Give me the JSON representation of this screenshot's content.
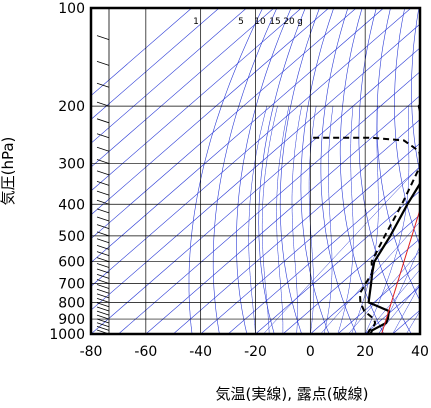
{
  "chart_data": {
    "type": "line",
    "subtype": "skew-t log-p sounding",
    "xlabel": "気温(実線), 露点(破線)",
    "ylabel": "気圧(hPa)",
    "xlim": [
      -80,
      40
    ],
    "ylim": [
      1000,
      100
    ],
    "y_scale": "log",
    "x_ticks": [
      -80,
      -60,
      -40,
      -20,
      0,
      20,
      40
    ],
    "y_ticks": [
      100,
      200,
      300,
      400,
      500,
      600,
      700,
      800,
      900,
      1000
    ],
    "mixing_ratio_labels": [
      "1",
      "5",
      "10",
      "15",
      "20",
      "g"
    ],
    "colors": {
      "reference_lines": "#2a3ad6",
      "curve": "#e02020",
      "data": "#000000",
      "grid": "#000000"
    },
    "series": [
      {
        "style": "solid",
        "points": [
          [
            22,
            1000
          ],
          [
            21,
            975
          ],
          [
            22,
            950
          ],
          [
            23,
            925
          ],
          [
            22,
            900
          ],
          [
            19,
            850
          ],
          [
            8,
            800
          ],
          [
            1,
            700
          ],
          [
            -3,
            650
          ],
          [
            -7,
            600
          ],
          [
            -12,
            500
          ],
          [
            -19,
            400
          ],
          [
            -27,
            300
          ],
          [
            -40,
            250
          ],
          [
            -56,
            200
          ],
          [
            -57,
            180
          ],
          [
            -61,
            170
          ],
          [
            -67,
            150
          ],
          [
            -67,
            130
          ],
          [
            -69,
            115
          ],
          [
            -72,
            105
          ],
          [
            -71,
            100
          ]
        ]
      },
      {
        "style": "dashed",
        "points": [
          [
            21,
            1000
          ],
          [
            20,
            975
          ],
          [
            20,
            950
          ],
          [
            19,
            925
          ],
          [
            17,
            900
          ],
          [
            10,
            850
          ],
          [
            5,
            800
          ],
          [
            1,
            750
          ],
          [
            -1,
            700
          ],
          [
            -3,
            650
          ],
          [
            -8,
            600
          ],
          [
            -14,
            500
          ],
          [
            -21,
            400
          ],
          [
            -31,
            300
          ],
          [
            -37,
            275
          ],
          [
            -47,
            255
          ],
          [
            -60,
            250
          ],
          [
            -82,
            250
          ]
        ]
      },
      {
        "style": "solid-red",
        "points": [
          [
            26,
            1000
          ],
          [
            -74,
            100
          ]
        ]
      }
    ]
  }
}
